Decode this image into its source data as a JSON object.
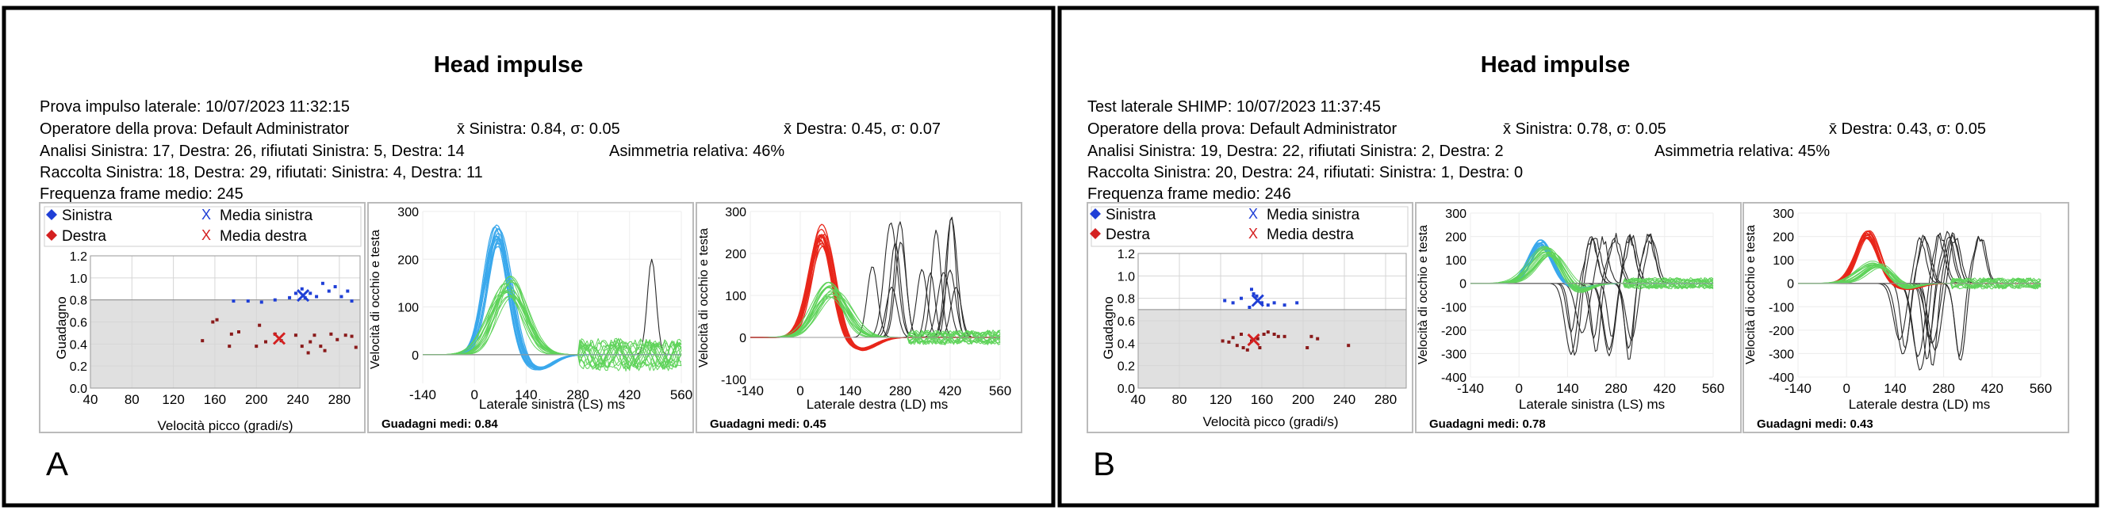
{
  "panels": [
    {
      "label": "A",
      "title": "Head impulse",
      "info": [
        "Prova impulso laterale: 10/07/2023 11:32:15",
        "Operatore della prova: Default Administrator",
        "Analisi Sinistra: 17, Destra: 26, rifiutati Sinistra: 5, Destra: 14",
        "Raccolta Sinistra: 18, Destra: 29, rifiutati: Sinistra: 4, Destra: 11",
        "Frequenza frame medio: 245"
      ],
      "mean_left": "x̄ Sinistra: 0.84, σ: 0.05",
      "mean_right": "x̄ Destra: 0.45, σ: 0.07",
      "asymmetry": "Asimmetria relativa: 46%",
      "left_gain": "Guadagni medi: 0.84",
      "right_gain": "Guadagni medi: 0.45"
    },
    {
      "label": "B",
      "title": "Head impulse",
      "info": [
        "Test laterale SHIMP: 10/07/2023 11:37:45",
        "Operatore della prova: Default Administrator",
        "Analisi Sinistra: 19, Destra: 22, rifiutati Sinistra: 2, Destra: 2",
        "Raccolta Sinistra: 20, Destra: 24, rifiutati: Sinistra: 1, Destra: 0",
        "Frequenza frame medio: 246"
      ],
      "mean_left": "x̄ Sinistra: 0.78, σ: 0.05",
      "mean_right": "x̄ Destra: 0.43, σ: 0.05",
      "asymmetry": "Asimmetria relativa: 45%",
      "left_gain": "Guadagni medi: 0.78",
      "right_gain": "Guadagni medi: 0.43"
    }
  ],
  "legend": {
    "left": "Sinistra",
    "right": "Destra",
    "left_mean": "Media sinistra",
    "right_mean": "Media destra"
  },
  "colors": {
    "left": "#1f3fd6",
    "right": "#d42020",
    "left_trace": "#3aa8ec",
    "right_trace": "#e8261a",
    "eye_trace": "#5fd35a",
    "saccade": "#2a2a2a",
    "scatter_fill": "#e0e0e0"
  },
  "chart_data": [
    {
      "type": "scatter",
      "panel": "A",
      "xlabel": "Velocità picco (gradi/s)",
      "ylabel": "Guadagno",
      "xlim": [
        40,
        300
      ],
      "ylim": [
        0,
        1.2
      ],
      "xticks": [
        "40",
        "80",
        "120",
        "160",
        "200",
        "240",
        "280"
      ],
      "yticks": [
        "0.0",
        "0.2",
        "0.4",
        "0.6",
        "0.8",
        "1.0",
        "1.2"
      ],
      "normal_gain_threshold": 0.8,
      "series": [
        {
          "name": "Sinistra",
          "points": [
            [
              178,
              0.79
            ],
            [
              192,
              0.79
            ],
            [
              205,
              0.78
            ],
            [
              218,
              0.8
            ],
            [
              232,
              0.82
            ],
            [
              238,
              0.86
            ],
            [
              244,
              0.9
            ],
            [
              247,
              0.82
            ],
            [
              252,
              0.86
            ],
            [
              258,
              0.83
            ],
            [
              264,
              0.95
            ],
            [
              270,
              0.88
            ],
            [
              276,
              0.92
            ],
            [
              282,
              0.83
            ],
            [
              288,
              0.88
            ],
            [
              292,
              0.79
            ]
          ]
        },
        {
          "name": "Destra",
          "points": [
            [
              148,
              0.43
            ],
            [
              158,
              0.6
            ],
            [
              162,
              0.62
            ],
            [
              174,
              0.38
            ],
            [
              176,
              0.49
            ],
            [
              183,
              0.51
            ],
            [
              200,
              0.38
            ],
            [
              203,
              0.57
            ],
            [
              209,
              0.42
            ],
            [
              218,
              0.49
            ],
            [
              224,
              0.43
            ],
            [
              238,
              0.48
            ],
            [
              244,
              0.38
            ],
            [
              250,
              0.32
            ],
            [
              252,
              0.42
            ],
            [
              256,
              0.48
            ],
            [
              262,
              0.38
            ],
            [
              266,
              0.34
            ],
            [
              272,
              0.49
            ],
            [
              278,
              0.44
            ],
            [
              286,
              0.48
            ],
            [
              292,
              0.47
            ],
            [
              296,
              0.37
            ]
          ]
        },
        {
          "name": "Media sinistra",
          "points": [
            [
              245,
              0.84
            ]
          ]
        },
        {
          "name": "Media destra",
          "points": [
            [
              222,
              0.45
            ]
          ]
        }
      ]
    },
    {
      "type": "line",
      "panel": "A",
      "title": "Guadagni medi: 0.84",
      "xlabel": "Laterale sinistra (LS) ms",
      "ylabel": "Velocità di occhio e testa",
      "xlim": [
        -140,
        560
      ],
      "ylim": [
        -60,
        300
      ],
      "xticks": [
        "-140",
        "0",
        "140",
        "280",
        "420",
        "560"
      ],
      "yticks": [
        "0",
        "100",
        "200",
        "300"
      ],
      "head_peak_deg_s": 270,
      "eye_peak_deg_s": 150
    },
    {
      "type": "line",
      "panel": "A",
      "title": "Guadagni medi: 0.45",
      "xlabel": "Laterale destra (LD) ms",
      "ylabel": "Velocità di occhio e testa",
      "xlim": [
        -140,
        560
      ],
      "ylim": [
        -100,
        300
      ],
      "xticks": [
        "-140",
        "0",
        "140",
        "280",
        "420",
        "560"
      ],
      "yticks": [
        "-100",
        "0",
        "100",
        "200",
        "300"
      ],
      "head_peak_deg_s": 260,
      "eye_peak_deg_s": 120
    },
    {
      "type": "scatter",
      "panel": "B",
      "xlabel": "Velocità picco (gradi/s)",
      "ylabel": "Guadagno",
      "xlim": [
        40,
        300
      ],
      "ylim": [
        0,
        1.2
      ],
      "xticks": [
        "40",
        "80",
        "120",
        "160",
        "200",
        "240",
        "280"
      ],
      "yticks": [
        "0.0",
        "0.2",
        "0.4",
        "0.6",
        "0.8",
        "1.0",
        "1.2"
      ],
      "normal_gain_threshold": 0.7,
      "series": [
        {
          "name": "Sinistra",
          "points": [
            [
              124,
              0.78
            ],
            [
              132,
              0.76
            ],
            [
              140,
              0.8
            ],
            [
              148,
              0.72
            ],
            [
              150,
              0.88
            ],
            [
              152,
              0.84
            ],
            [
              155,
              0.82
            ],
            [
              160,
              0.76
            ],
            [
              166,
              0.74
            ],
            [
              172,
              0.76
            ],
            [
              182,
              0.74
            ],
            [
              194,
              0.76
            ]
          ]
        },
        {
          "name": "Destra",
          "points": [
            [
              122,
              0.42
            ],
            [
              128,
              0.41
            ],
            [
              132,
              0.45
            ],
            [
              136,
              0.38
            ],
            [
              140,
              0.48
            ],
            [
              142,
              0.36
            ],
            [
              146,
              0.34
            ],
            [
              150,
              0.42
            ],
            [
              156,
              0.44
            ],
            [
              158,
              0.36
            ],
            [
              162,
              0.48
            ],
            [
              166,
              0.5
            ],
            [
              172,
              0.48
            ],
            [
              176,
              0.46
            ],
            [
              182,
              0.46
            ],
            [
              204,
              0.36
            ],
            [
              208,
              0.46
            ],
            [
              214,
              0.44
            ],
            [
              244,
              0.38
            ]
          ]
        },
        {
          "name": "Media sinistra",
          "points": [
            [
              156,
              0.78
            ]
          ]
        },
        {
          "name": "Media destra",
          "points": [
            [
              152,
              0.43
            ]
          ]
        }
      ]
    },
    {
      "type": "line",
      "panel": "B",
      "title": "Guadagni medi: 0.78",
      "xlabel": "Laterale sinistra (LS) ms",
      "ylabel": "Velocità di occhio e testa",
      "xlim": [
        -140,
        560
      ],
      "ylim": [
        -400,
        300
      ],
      "xticks": [
        "-140",
        "0",
        "140",
        "280",
        "420",
        "560"
      ],
      "yticks": [
        "-400",
        "-300",
        "-200",
        "-100",
        "0",
        "100",
        "200",
        "300"
      ],
      "head_peak_deg_s": 180,
      "eye_peak_deg_s": 150
    },
    {
      "type": "line",
      "panel": "B",
      "title": "Guadagni medi: 0.43",
      "xlabel": "Laterale destra (LD) ms",
      "ylabel": "Velocità di occhio e testa",
      "xlim": [
        -140,
        560
      ],
      "ylim": [
        -400,
        300
      ],
      "xticks": [
        "-140",
        "0",
        "140",
        "280",
        "420",
        "560"
      ],
      "yticks": [
        "-400",
        "-300",
        "-200",
        "-100",
        "0",
        "100",
        "200",
        "300"
      ],
      "head_peak_deg_s": 220,
      "eye_peak_deg_s": 90
    }
  ]
}
